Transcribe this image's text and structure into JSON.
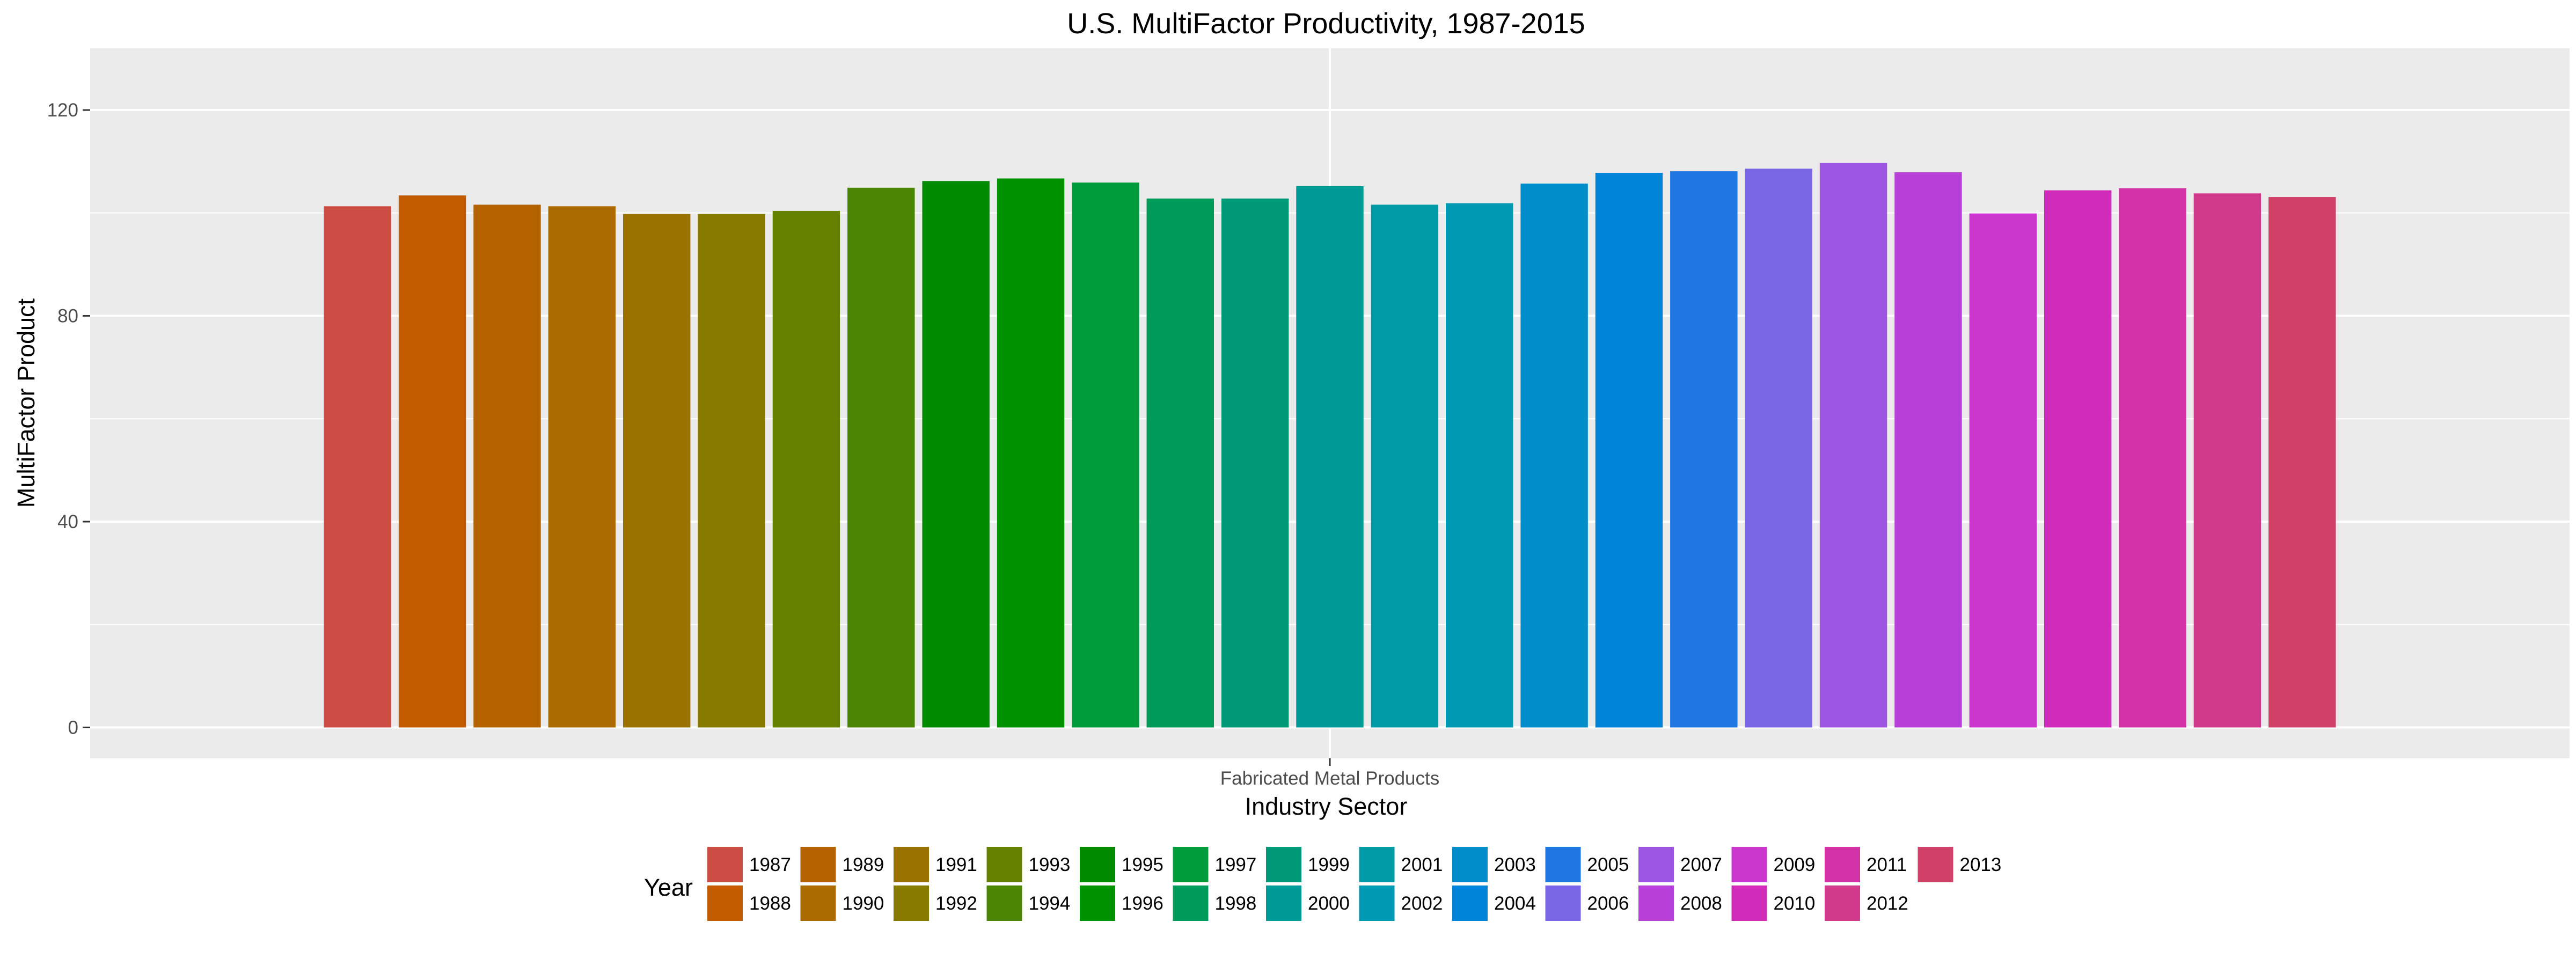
{
  "chart_data": {
    "type": "bar",
    "title": "U.S. MultiFactor Productivity, 1987-2015",
    "xlabel": "Industry Sector",
    "ylabel": "MultiFactor Product",
    "categories": [
      "Fabricated Metal Products"
    ],
    "yticks": [
      "0",
      "40",
      "80",
      "120"
    ],
    "ylim": [
      -6,
      132
    ],
    "grid": true,
    "legend_title": "Year",
    "legend_position": "bottom",
    "series": [
      {
        "name": "1987",
        "color": "#CB4D43",
        "values": [
          101.3
        ]
      },
      {
        "name": "1988",
        "color": "#C25A00",
        "values": [
          103.4
        ]
      },
      {
        "name": "1989",
        "color": "#B56300",
        "values": [
          101.6
        ]
      },
      {
        "name": "1990",
        "color": "#AC6B00",
        "values": [
          101.3
        ]
      },
      {
        "name": "1991",
        "color": "#9A7200",
        "values": [
          99.8
        ]
      },
      {
        "name": "1992",
        "color": "#877A00",
        "values": [
          99.8
        ]
      },
      {
        "name": "1993",
        "color": "#668100",
        "values": [
          100.4
        ]
      },
      {
        "name": "1994",
        "color": "#4A8400",
        "values": [
          104.9
        ]
      },
      {
        "name": "1995",
        "color": "#008A00",
        "values": [
          106.2
        ]
      },
      {
        "name": "1996",
        "color": "#009200",
        "values": [
          106.7
        ]
      },
      {
        "name": "1997",
        "color": "#009B3A",
        "values": [
          105.9
        ]
      },
      {
        "name": "1998",
        "color": "#009A5A",
        "values": [
          102.8
        ]
      },
      {
        "name": "1999",
        "color": "#009978",
        "values": [
          102.8
        ]
      },
      {
        "name": "2000",
        "color": "#009B96",
        "values": [
          105.2
        ]
      },
      {
        "name": "2001",
        "color": "#009BA6",
        "values": [
          101.6
        ]
      },
      {
        "name": "2002",
        "color": "#0099B3",
        "values": [
          101.9
        ]
      },
      {
        "name": "2003",
        "color": "#008DCA",
        "values": [
          105.7
        ]
      },
      {
        "name": "2004",
        "color": "#0084D8",
        "values": [
          107.8
        ]
      },
      {
        "name": "2005",
        "color": "#1E77E2",
        "values": [
          108.1
        ]
      },
      {
        "name": "2006",
        "color": "#7867E5",
        "values": [
          108.6
        ]
      },
      {
        "name": "2007",
        "color": "#9B55E1",
        "values": [
          109.7
        ]
      },
      {
        "name": "2008",
        "color": "#B83FD7",
        "values": [
          107.9
        ]
      },
      {
        "name": "2009",
        "color": "#CB36CC",
        "values": [
          99.9
        ]
      },
      {
        "name": "2010",
        "color": "#D02CB9",
        "values": [
          104.4
        ]
      },
      {
        "name": "2011",
        "color": "#D232A5",
        "values": [
          104.8
        ]
      },
      {
        "name": "2012",
        "color": "#D13A8A",
        "values": [
          103.8
        ]
      },
      {
        "name": "2013",
        "color": "#D14167",
        "values": [
          103.1
        ]
      }
    ]
  }
}
